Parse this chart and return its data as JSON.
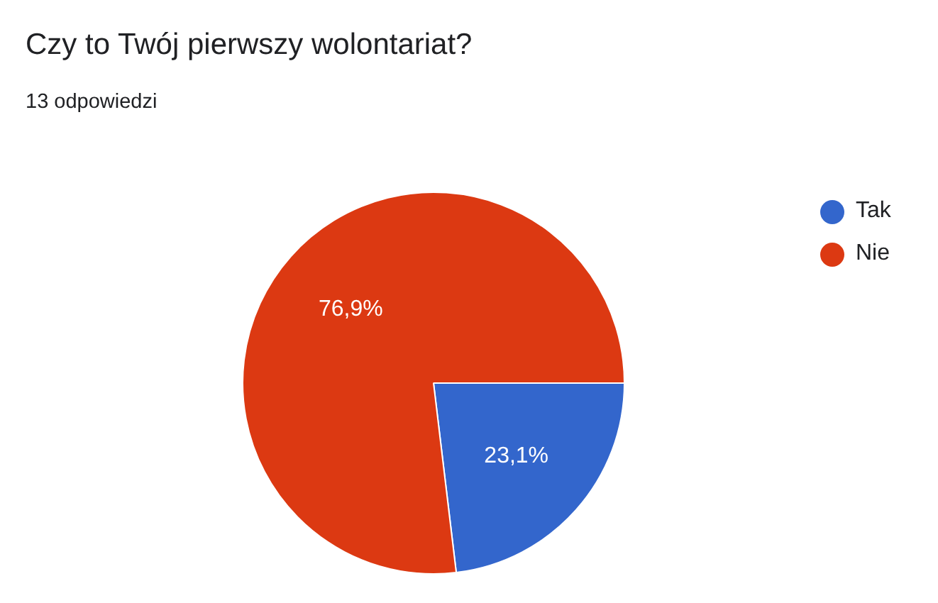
{
  "chart_data": {
    "type": "pie",
    "title": "Czy to Twój pierwszy wolontariat?",
    "subtitle": "13 odpowiedzi",
    "categories": [
      "Tak",
      "Nie"
    ],
    "values": [
      23.1,
      76.9
    ],
    "value_labels": [
      "23,1%",
      "76,9%"
    ],
    "colors": [
      "#3366cc",
      "#dc3912"
    ],
    "legend": "top right"
  }
}
